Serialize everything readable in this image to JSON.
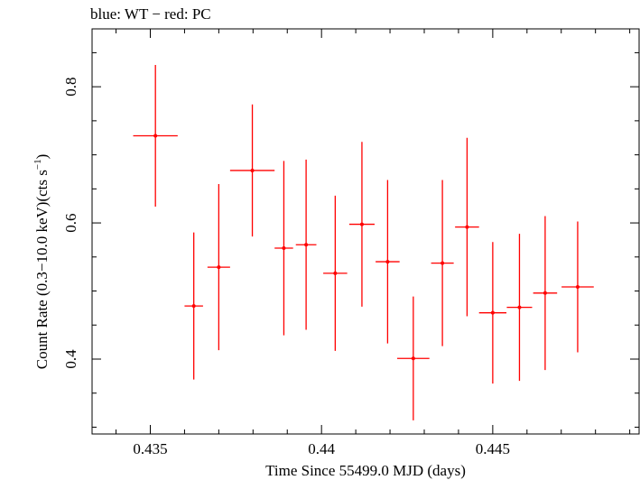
{
  "chart_data": {
    "type": "scatter",
    "title": "blue: WT − red: PC",
    "xlabel": "Time Since 55499.0 MJD (days)",
    "ylabel_main": "Count Rate (0.3−10.0 keV)(cts s",
    "ylabel_sup": "−1",
    "ylabel_end": ")",
    "xlim": [
      0.4333,
      0.4493
    ],
    "ylim": [
      0.29,
      0.885
    ],
    "xticks": [
      0.435,
      0.44,
      0.445
    ],
    "xtick_labels": [
      "0.435",
      "0.44",
      "0.445"
    ],
    "yticks": [
      0.4,
      0.6,
      0.8
    ],
    "ytick_labels": [
      "0.4",
      "0.6",
      "0.8"
    ],
    "grid": false,
    "series": [
      {
        "color": "#ff0000",
        "points": [
          {
            "x": 0.43515,
            "xerr": 0.00065,
            "y": 0.728,
            "yerr": 0.104
          },
          {
            "x": 0.43627,
            "xerr": 0.00027,
            "y": 0.478,
            "yerr": 0.108
          },
          {
            "x": 0.437,
            "xerr": 0.00033,
            "y": 0.535,
            "yerr": 0.122
          },
          {
            "x": 0.43798,
            "xerr": 0.00065,
            "y": 0.677,
            "yerr": 0.097
          },
          {
            "x": 0.4389,
            "xerr": 0.00027,
            "y": 0.563,
            "yerr": 0.128
          },
          {
            "x": 0.43955,
            "xerr": 0.0003,
            "y": 0.568,
            "yerr": 0.125
          },
          {
            "x": 0.4404,
            "xerr": 0.00035,
            "y": 0.526,
            "yerr": 0.114
          },
          {
            "x": 0.44118,
            "xerr": 0.00037,
            "y": 0.598,
            "yerr": 0.121
          },
          {
            "x": 0.44193,
            "xerr": 0.00035,
            "y": 0.543,
            "yerr": 0.12
          },
          {
            "x": 0.44268,
            "xerr": 0.00047,
            "y": 0.401,
            "yerr": 0.091
          },
          {
            "x": 0.44353,
            "xerr": 0.00033,
            "y": 0.541,
            "yerr": 0.122
          },
          {
            "x": 0.44425,
            "xerr": 0.00035,
            "y": 0.594,
            "yerr": 0.131
          },
          {
            "x": 0.445,
            "xerr": 0.0004,
            "y": 0.468,
            "yerr": 0.104
          },
          {
            "x": 0.44578,
            "xerr": 0.00037,
            "y": 0.476,
            "yerr": 0.108
          },
          {
            "x": 0.44653,
            "xerr": 0.00035,
            "y": 0.497,
            "yerr": 0.113
          },
          {
            "x": 0.44748,
            "xerr": 0.00047,
            "y": 0.506,
            "yerr": 0.096
          }
        ]
      }
    ]
  }
}
